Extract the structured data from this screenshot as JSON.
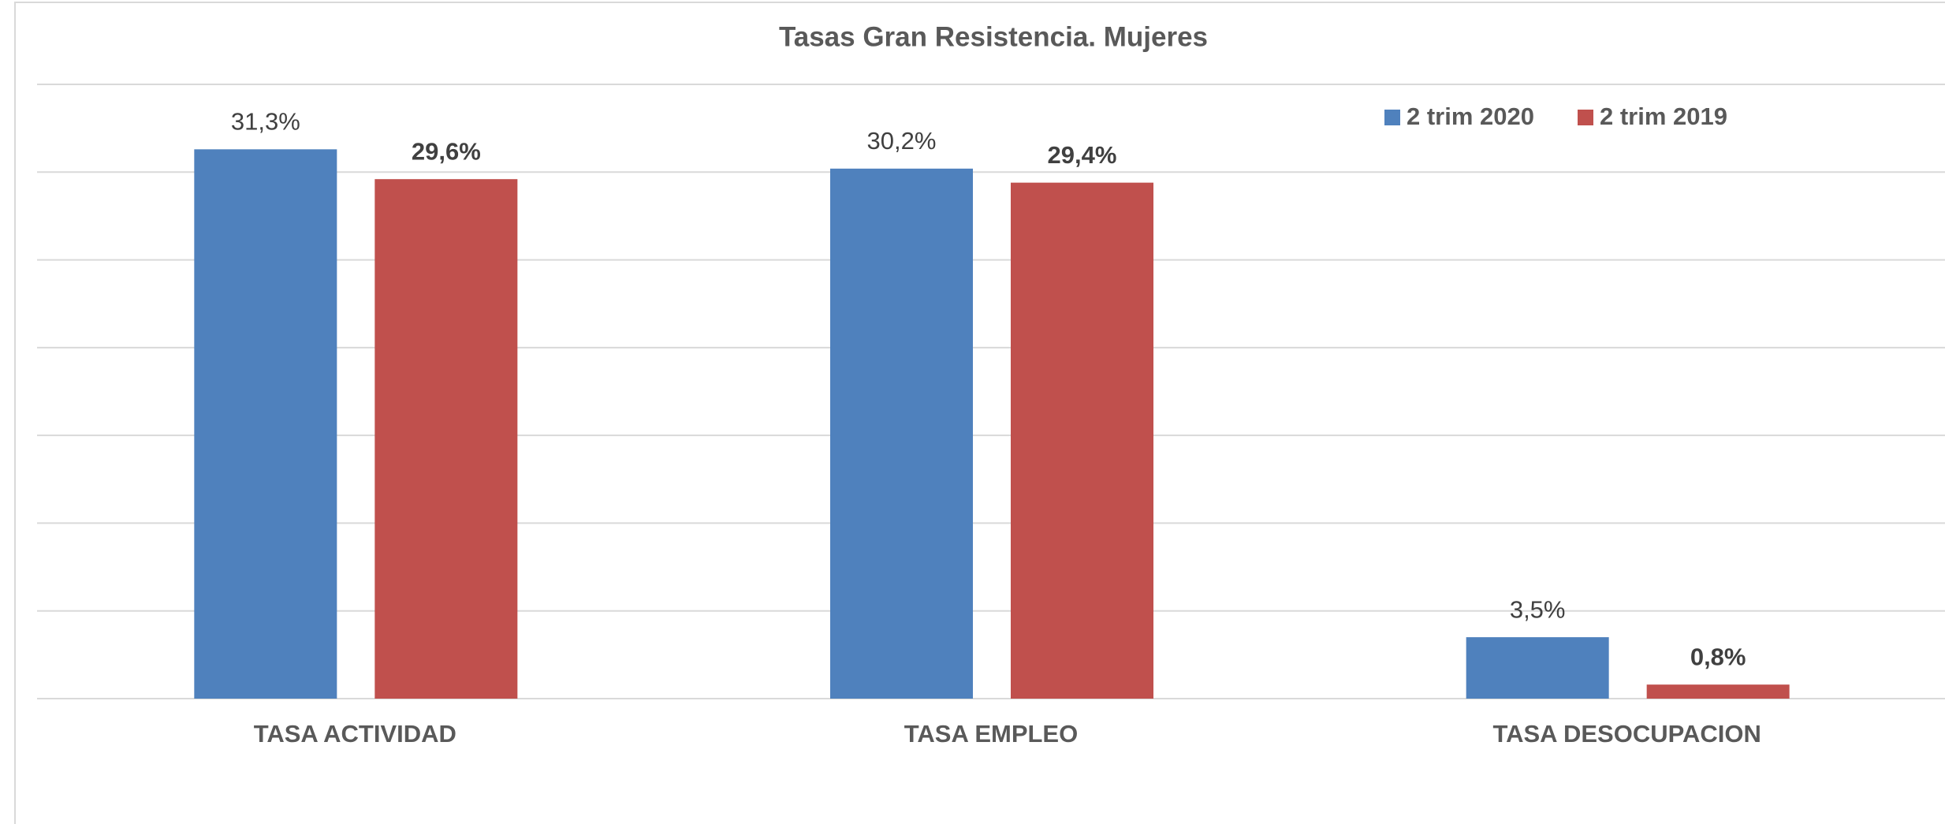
{
  "chart_data": {
    "type": "bar",
    "title": "Tasas Gran Resistencia. Mujeres",
    "categories": [
      "TASA ACTIVIDAD",
      "TASA EMPLEO",
      "TASA DESOCUPACION"
    ],
    "series": [
      {
        "name": "2 trim 2020",
        "color": "#4f81bd",
        "values": [
          31.3,
          30.2,
          3.5
        ],
        "value_labels": [
          "31,3%",
          "30,2%",
          "3,5%"
        ]
      },
      {
        "name": "2 trim 2019",
        "color": "#c0504d",
        "values": [
          29.6,
          29.4,
          0.8
        ],
        "value_labels": [
          "29,6%",
          "29,4%",
          "0,8%"
        ]
      }
    ],
    "ylim": [
      0,
      35
    ],
    "yticks": [
      0,
      5,
      10,
      15,
      20,
      25,
      30,
      35
    ],
    "grid": true,
    "legend": "top-right"
  }
}
